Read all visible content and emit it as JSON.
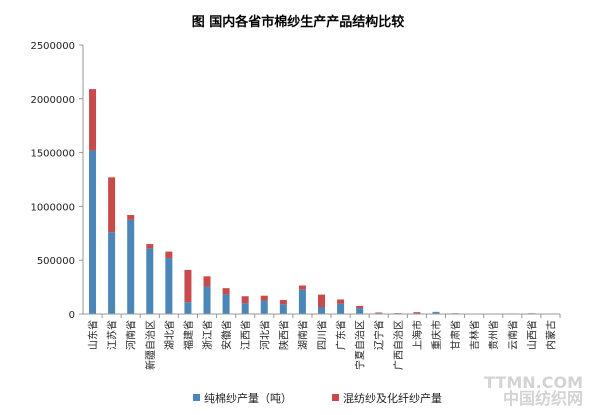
{
  "chart_data": {
    "type": "bar",
    "stacked": true,
    "title": "图 国内各省市棉纱生产产品结构比较",
    "xlabel": "",
    "ylabel": "",
    "ylim": [
      0,
      2500000
    ],
    "yticks": [
      "2500000",
      "2000000",
      "1500000",
      "1000000",
      "500000",
      "0"
    ],
    "categories": [
      "山东省",
      "江苏省",
      "河南省",
      "新疆自治区",
      "湖北省",
      "福建省",
      "浙江省",
      "安徽省",
      "江西省",
      "河北省",
      "陕西省",
      "湖南省",
      "四川省",
      "广东省",
      "宁夏自治区",
      "辽宁省",
      "广西自治区",
      "上海市",
      "重庆市",
      "甘肃省",
      "吉林省",
      "贵州省",
      "云南省",
      "山西省",
      "内蒙古"
    ],
    "series": [
      {
        "name": "纯棉纱产量（吨）",
        "color": "#4a86b8",
        "values": [
          1520000,
          760000,
          875000,
          610000,
          520000,
          110000,
          255000,
          185000,
          100000,
          125000,
          90000,
          225000,
          65000,
          95000,
          55000,
          8000,
          5000,
          5000,
          18000,
          5000,
          2000,
          3000,
          3000,
          5000,
          2000
        ]
      },
      {
        "name": "混纺纱及化纤纱产量",
        "color": "#c94a4a",
        "values": [
          570000,
          510000,
          45000,
          40000,
          60000,
          300000,
          95000,
          55000,
          65000,
          45000,
          40000,
          40000,
          115000,
          40000,
          20000,
          6000,
          3000,
          12000,
          2000,
          2000,
          1000,
          1000,
          2000,
          2000,
          1000
        ]
      }
    ],
    "legend": "bottom",
    "grid": false
  },
  "watermark": {
    "line1": "TTMN.COM",
    "line2": "中国纺织网"
  }
}
